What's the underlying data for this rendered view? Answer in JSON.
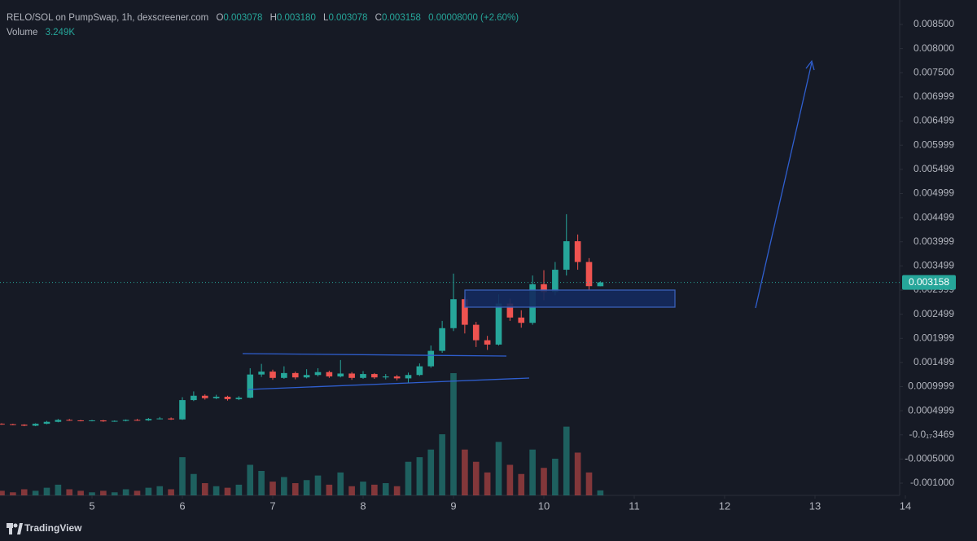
{
  "header": {
    "symbol": "RELO/SOL on PumpSwap, 1h, dexscreener.com",
    "ohlc_labels": [
      "O",
      "H",
      "L",
      "C"
    ],
    "ohlc_values": [
      "0.003078",
      "0.003180",
      "0.003078",
      "0.003158"
    ],
    "change": "0.00008000 (+2.60%)",
    "volume_title": "Volume",
    "volume_value": "3.249K"
  },
  "brand": "TradingView",
  "chart_data": {
    "type": "candlestick",
    "grid": false,
    "up_color": "#26a69a",
    "down_color": "#ef5350",
    "xlim": [
      3.982,
      13.937
    ],
    "xticks": [
      5,
      6,
      7,
      8,
      9,
      10,
      11,
      12,
      13,
      14
    ],
    "ylim": [
      -0.001253,
      0.009006
    ],
    "yticks": [
      {
        "value": 0.0085,
        "label": "0.008500"
      },
      {
        "value": 0.008,
        "label": "0.008000"
      },
      {
        "value": 0.0075,
        "label": "0.007500"
      },
      0.006999,
      0.006499,
      0.005999,
      0.005499,
      0.004999,
      0.004499,
      0.003999,
      0.003499,
      0.002999,
      0.002499,
      0.001999,
      0.001499,
      0.0009999,
      0.0004999,
      {
        "value": -3.469e-21,
        "label": "-0.0₁₇3469"
      },
      {
        "value": -0.0005,
        "label": "-0.0005000"
      },
      {
        "value": -0.001,
        "label": "-0.001000"
      }
    ],
    "x": [
      4.0,
      4.125,
      4.25,
      4.375,
      4.5,
      4.625,
      4.75,
      4.875,
      5.0,
      5.125,
      5.25,
      5.375,
      5.5,
      5.625,
      5.75,
      5.875,
      6.0,
      6.125,
      6.25,
      6.375,
      6.5,
      6.625,
      6.75,
      6.875,
      7.0,
      7.125,
      7.25,
      7.375,
      7.5,
      7.625,
      7.75,
      7.875,
      8.0,
      8.125,
      8.25,
      8.375,
      8.5,
      8.625,
      8.75,
      8.875,
      9.0,
      9.125,
      9.25,
      9.375,
      9.5,
      9.625,
      9.75,
      9.875,
      10.0,
      10.125,
      10.25,
      10.375,
      10.5,
      10.625
    ],
    "open": [
      0.00023,
      0.00022,
      0.00021,
      0.00019,
      0.00023,
      0.00027,
      0.00031,
      0.0003,
      0.00029,
      0.0003,
      0.00028,
      0.00029,
      0.00031,
      0.0003,
      0.00033,
      0.00034,
      0.00032,
      0.00072,
      0.00081,
      0.00076,
      0.00079,
      0.00074,
      0.00077,
      0.00125,
      0.00131,
      0.00118,
      0.00128,
      0.00119,
      0.00124,
      0.0013,
      0.00121,
      0.00127,
      0.00118,
      0.00126,
      0.00119,
      0.00121,
      0.00117,
      0.00124,
      0.00142,
      0.00174,
      0.00221,
      0.00281,
      0.00228,
      0.00196,
      0.00187,
      0.00272,
      0.00243,
      0.00232,
      0.00312,
      0.00296,
      0.00342,
      0.00401,
      0.00358,
      0.003078
    ],
    "high": [
      0.00024,
      0.00023,
      0.00022,
      0.00024,
      0.00029,
      0.00033,
      0.00033,
      0.00031,
      0.00031,
      0.00031,
      0.0003,
      0.00032,
      0.00033,
      0.00035,
      0.00037,
      0.00036,
      0.00078,
      0.0009,
      0.00084,
      0.00083,
      0.00081,
      0.0008,
      0.00138,
      0.00147,
      0.00135,
      0.00142,
      0.00131,
      0.00136,
      0.00138,
      0.00133,
      0.00155,
      0.0013,
      0.00132,
      0.00128,
      0.00126,
      0.00124,
      0.00129,
      0.00148,
      0.00185,
      0.00236,
      0.00334,
      0.00286,
      0.00234,
      0.00205,
      0.00291,
      0.00282,
      0.00258,
      0.0033,
      0.00341,
      0.00358,
      0.00457,
      0.00415,
      0.00366,
      0.00318
    ],
    "low": [
      0.00021,
      0.0002,
      0.00018,
      0.00018,
      0.00022,
      0.00026,
      0.00029,
      0.00028,
      0.00028,
      0.00027,
      0.00027,
      0.00028,
      0.00029,
      0.00029,
      0.00032,
      0.00031,
      0.00031,
      0.0007,
      0.00073,
      0.00074,
      0.00071,
      0.00072,
      0.00076,
      0.0012,
      0.00114,
      0.00116,
      0.00115,
      0.00117,
      0.00121,
      0.00118,
      0.00119,
      0.00114,
      0.00116,
      0.00116,
      0.00115,
      0.00113,
      0.00108,
      0.00122,
      0.00139,
      0.0017,
      0.00215,
      0.0021,
      0.00182,
      0.00176,
      0.00185,
      0.00236,
      0.00222,
      0.00228,
      0.00279,
      0.00289,
      0.0033,
      0.00342,
      0.00298,
      0.003078
    ],
    "close": [
      0.00022,
      0.00021,
      0.00019,
      0.00023,
      0.00027,
      0.00031,
      0.0003,
      0.00029,
      0.0003,
      0.00028,
      0.00029,
      0.00031,
      0.0003,
      0.00033,
      0.00034,
      0.00032,
      0.00072,
      0.00081,
      0.00076,
      0.00079,
      0.00074,
      0.00077,
      0.00125,
      0.00131,
      0.00118,
      0.00128,
      0.00119,
      0.00124,
      0.0013,
      0.00121,
      0.00127,
      0.00118,
      0.00126,
      0.00119,
      0.00121,
      0.00117,
      0.00124,
      0.00142,
      0.00174,
      0.00221,
      0.00281,
      0.00228,
      0.00196,
      0.00187,
      0.00272,
      0.00243,
      0.00232,
      0.00312,
      0.00296,
      0.00342,
      0.00401,
      0.00358,
      0.00308,
      0.003158
    ],
    "volume": [
      3,
      2,
      4,
      3,
      5,
      7,
      4,
      3,
      2,
      3,
      2,
      4,
      3,
      5,
      6,
      4,
      25,
      14,
      8,
      6,
      5,
      7,
      20,
      16,
      9,
      12,
      8,
      10,
      13,
      7,
      15,
      6,
      9,
      7,
      8,
      6,
      22,
      25,
      30,
      40,
      80,
      30,
      22,
      15,
      35,
      20,
      14,
      30,
      18,
      24,
      45,
      28,
      15,
      3.249
    ]
  }
}
